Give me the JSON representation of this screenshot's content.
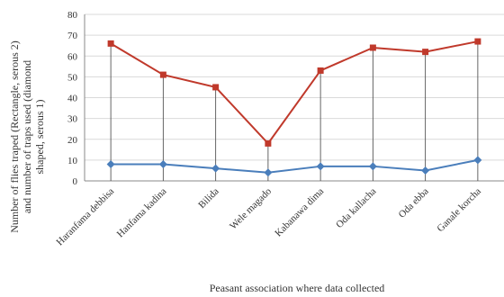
{
  "chart_data": {
    "type": "line",
    "categories": [
      "Haranfama debbisa",
      "Hanfama kadina",
      "Bilida",
      "Wele magado",
      "Kabanawa dima",
      "Oda kallacha",
      "Oda ebba",
      "Ganale korcha"
    ],
    "series": [
      {
        "values": [
          66,
          51,
          45,
          18,
          53,
          64,
          62,
          67
        ],
        "color": "#c0392b",
        "marker": "square"
      },
      {
        "values": [
          8,
          8,
          6,
          4,
          7,
          7,
          5,
          10
        ],
        "color": "#4a7ebb",
        "marker": "diamond"
      }
    ],
    "xlabel": "Peasant association where data collected",
    "ylabel_lines": [
      "Number of flies traped (Rectangle, serous 2)",
      "and number of traps used (diamond",
      "shaped, serous 1)"
    ],
    "ylim": [
      0,
      80
    ],
    "yticks": [
      "0",
      "10",
      "20",
      "30",
      "40",
      "50",
      "60",
      "70",
      "80"
    ],
    "drop_lines": true,
    "legend": "none"
  }
}
